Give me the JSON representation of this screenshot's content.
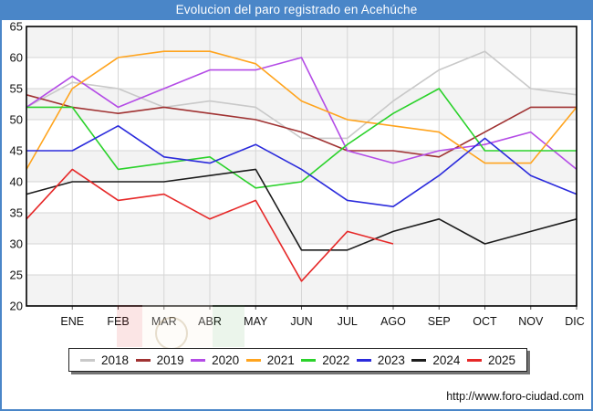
{
  "window": {
    "accent_color": "#4a86c8",
    "background_color": "#ffffff"
  },
  "header": {
    "title": "Evolucion del paro registrado en Acehúche"
  },
  "chart_data": {
    "type": "line",
    "title": "Evolucion del paro registrado en Acehúche",
    "x_tick_labels": [
      "ENE",
      "FEB",
      "MAR",
      "ABR",
      "MAY",
      "JUN",
      "JUL",
      "AGO",
      "SEP",
      "OCT",
      "NOV",
      "DIC"
    ],
    "x_layout_note": "13 plotted points per full series: the point on the left axis is the previous December, then ENE..DIC at each gridline",
    "ylim": [
      20,
      65
    ],
    "y_tick_step": 5,
    "y_tick_labels": [
      20,
      25,
      30,
      35,
      40,
      45,
      50,
      55,
      60,
      65
    ],
    "grid": true,
    "band_fill_ranges": [
      [
        20,
        25
      ],
      [
        30,
        35
      ],
      [
        40,
        45
      ],
      [
        50,
        55
      ],
      [
        60,
        65
      ]
    ],
    "legend_position": "bottom",
    "series": [
      {
        "name": "2018",
        "color": "#c9c9c9",
        "values": [
          52,
          56,
          55,
          52,
          53,
          52,
          47,
          47,
          53,
          58,
          61,
          55,
          54
        ]
      },
      {
        "name": "2019",
        "color": "#a03232",
        "values": [
          54,
          52,
          51,
          52,
          51,
          50,
          48,
          45,
          45,
          44,
          48,
          52,
          52
        ]
      },
      {
        "name": "2020",
        "color": "#b44ce6",
        "values": [
          52,
          57,
          52,
          55,
          58,
          58,
          60,
          45,
          43,
          45,
          46,
          48,
          42
        ]
      },
      {
        "name": "2021",
        "color": "#ffa41e",
        "values": [
          42,
          55,
          60,
          61,
          61,
          59,
          53,
          50,
          49,
          48,
          43,
          43,
          52
        ]
      },
      {
        "name": "2022",
        "color": "#2bd22b",
        "values": [
          52,
          52,
          42,
          43,
          44,
          39,
          40,
          46,
          51,
          55,
          45,
          45,
          45
        ]
      },
      {
        "name": "2023",
        "color": "#2b2bdc",
        "values": [
          45,
          45,
          49,
          44,
          43,
          46,
          42,
          37,
          36,
          41,
          47,
          41,
          38
        ]
      },
      {
        "name": "2024",
        "color": "#1c1c1c",
        "values": [
          38,
          40,
          40,
          40,
          41,
          42,
          29,
          29,
          32,
          34,
          30,
          32,
          34
        ]
      },
      {
        "name": "2025",
        "color": "#e62828",
        "values": [
          34,
          42,
          37,
          38,
          34,
          37,
          24,
          32,
          30
        ]
      }
    ]
  },
  "footer": {
    "url": "http://www.foro-ciudad.com"
  }
}
